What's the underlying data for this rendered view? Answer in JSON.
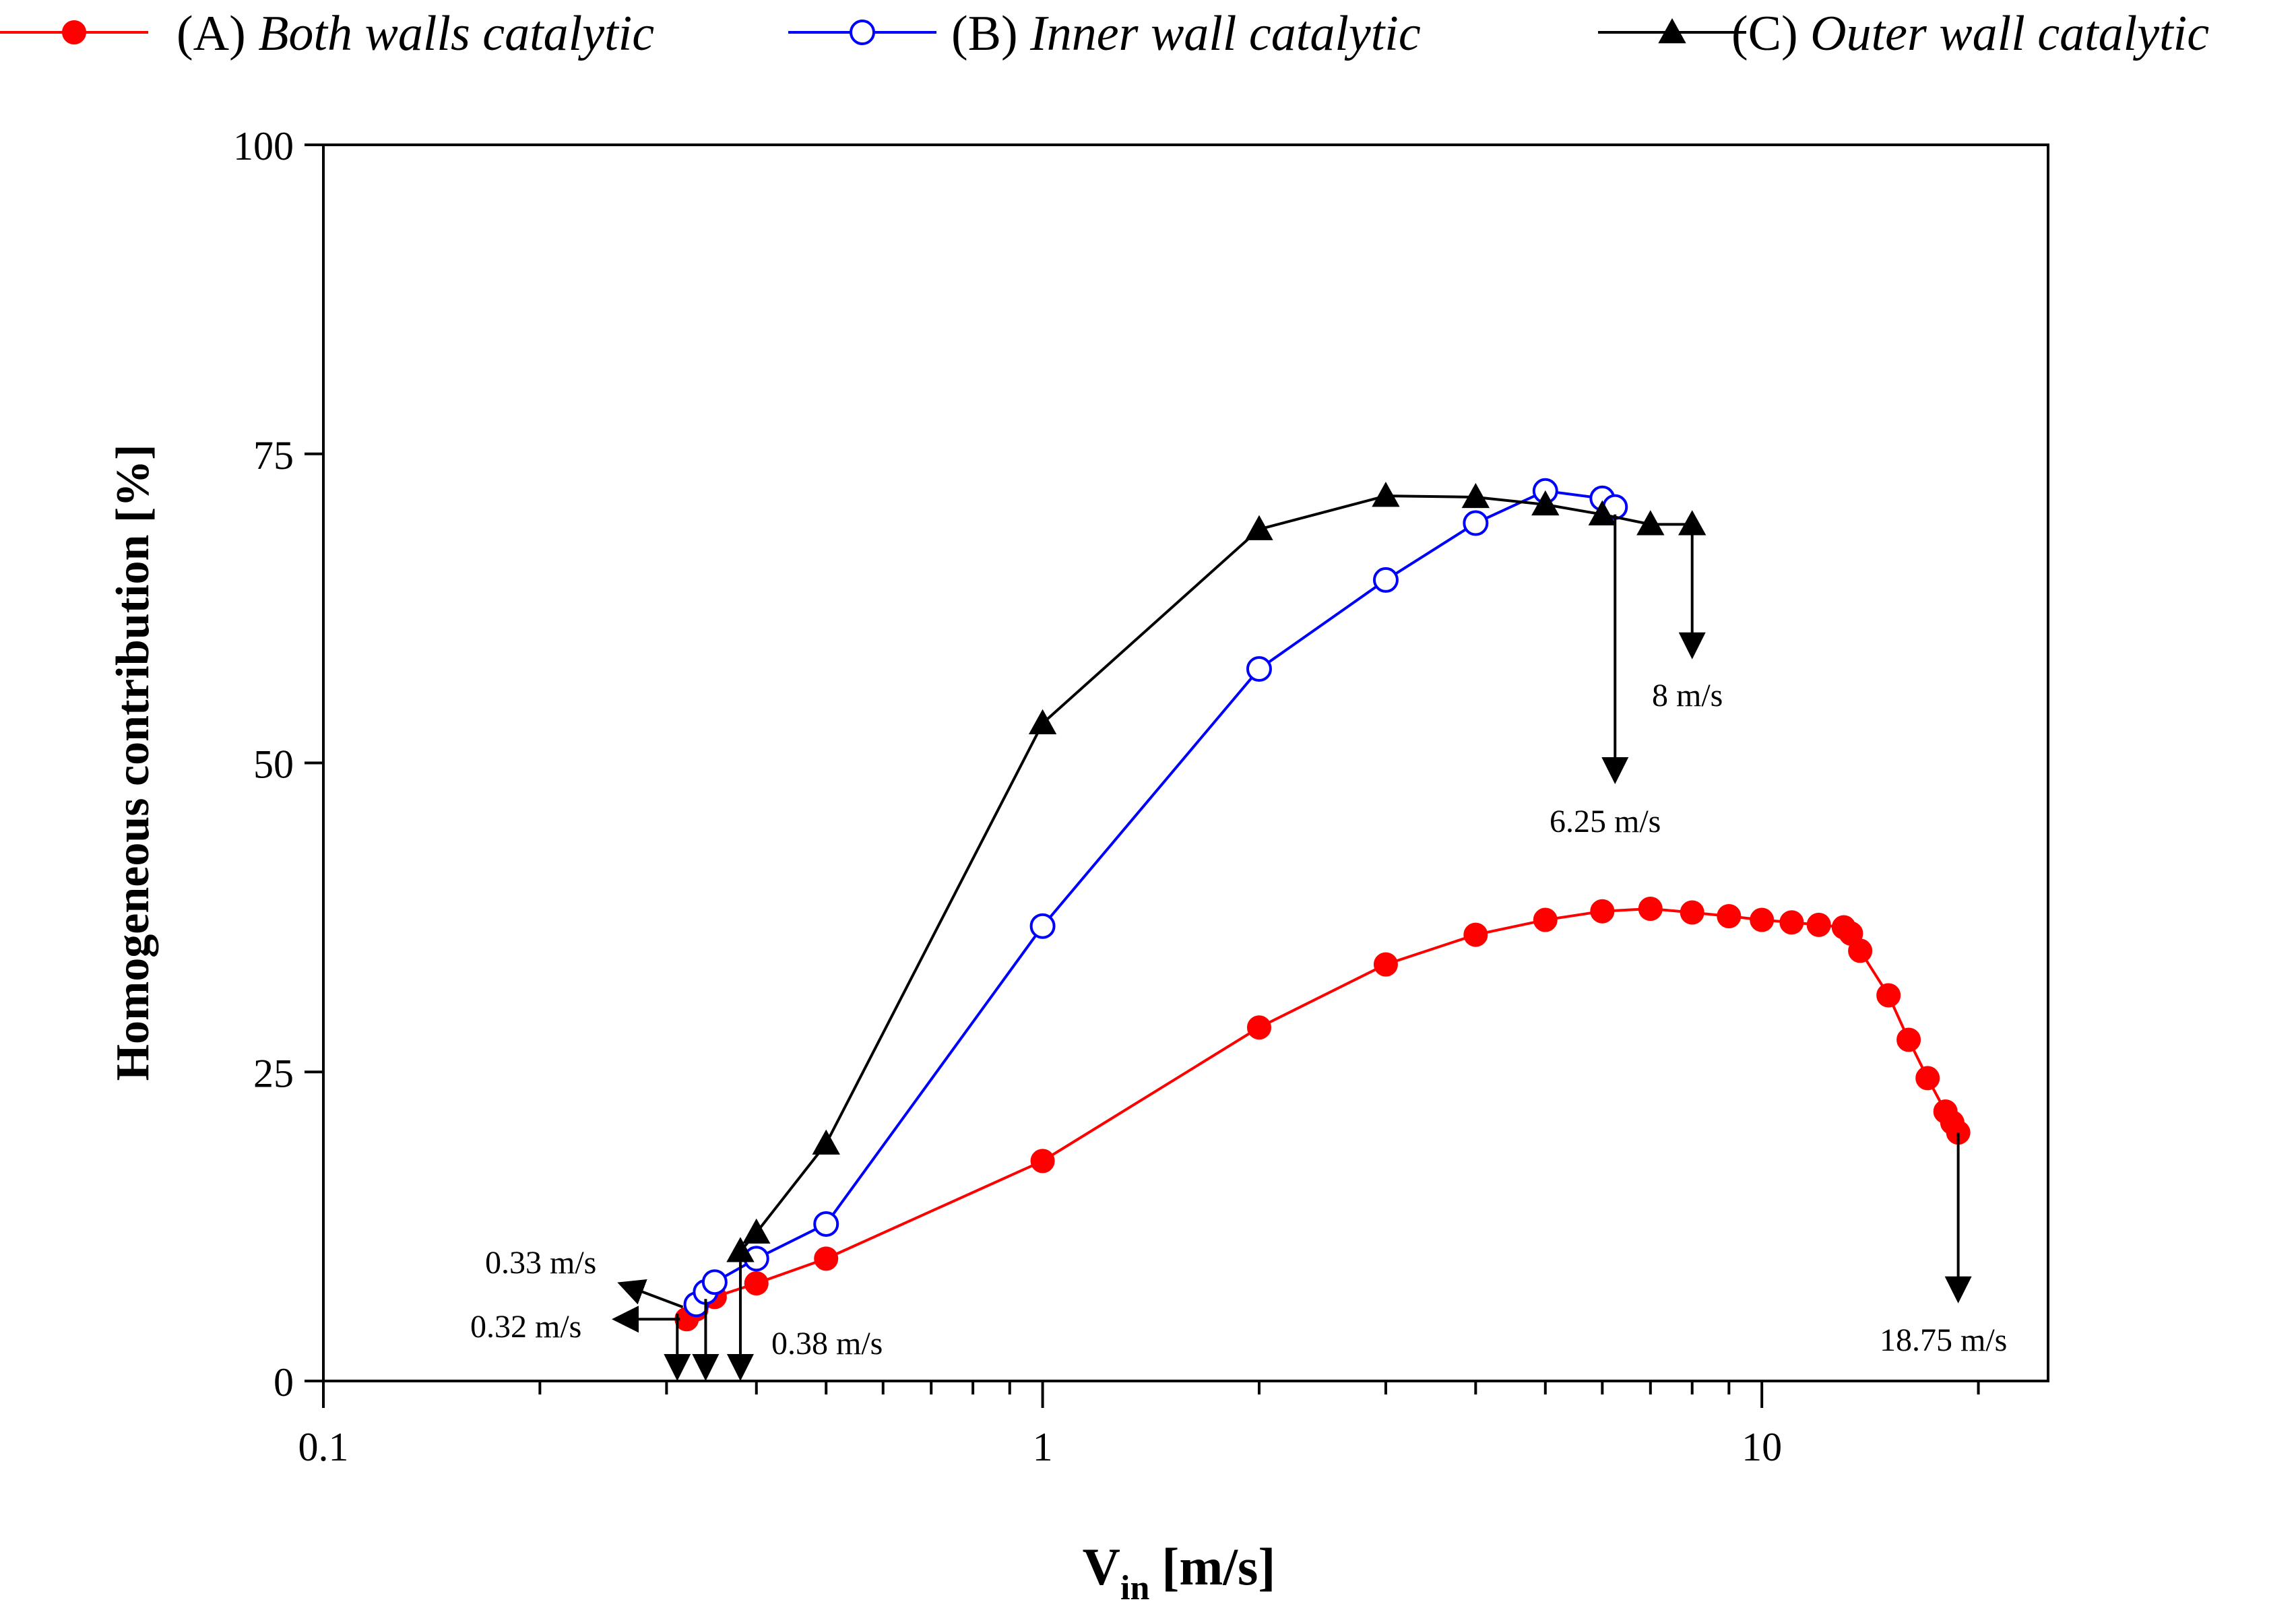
{
  "chart_data": {
    "type": "line",
    "x_scale": "log",
    "xlim": [
      0.1,
      25
    ],
    "ylim": [
      0,
      100
    ],
    "xlabel": {
      "main": "V",
      "sub": "in",
      "unit": "[m/s]"
    },
    "ylabel": "Homogeneous contribution [%]",
    "x_ticks": [
      {
        "value": 0.1,
        "label": "0.1"
      },
      {
        "value": 1,
        "label": "1"
      },
      {
        "value": 10,
        "label": "10"
      }
    ],
    "y_ticks": [
      {
        "value": 0,
        "label": "0"
      },
      {
        "value": 25,
        "label": "25"
      },
      {
        "value": 50,
        "label": "50"
      },
      {
        "value": 75,
        "label": "75"
      },
      {
        "value": 100,
        "label": "100"
      }
    ],
    "series": [
      {
        "name": "A",
        "prefix": "(A) ",
        "label": "Both walls catalytic",
        "color": "#ff0000",
        "marker": "filled-circle",
        "x": [
          0.32,
          0.33,
          0.35,
          0.4,
          0.5,
          1,
          2,
          3,
          4,
          5,
          6,
          7,
          8,
          9,
          10,
          11,
          12,
          13,
          13.3,
          13.7,
          15,
          16,
          17,
          18,
          18.4,
          18.75
        ],
        "y": [
          5,
          5.8,
          6.8,
          7.9,
          9.9,
          17.8,
          28.6,
          33.7,
          36.1,
          37.3,
          38.0,
          38.2,
          37.9,
          37.6,
          37.3,
          37.1,
          36.9,
          36.7,
          36.2,
          34.8,
          31.2,
          27.6,
          24.5,
          21.8,
          20.9,
          20.1
        ]
      },
      {
        "name": "B",
        "prefix": "(B) ",
        "label": "Inner wall catalytic",
        "color": "#0000ff",
        "marker": "open-circle",
        "x": [
          0.33,
          0.34,
          0.35,
          0.4,
          0.5,
          1,
          2,
          3,
          4,
          5,
          6,
          6.25
        ],
        "y": [
          6.2,
          7.2,
          8.0,
          9.9,
          12.7,
          36.8,
          57.6,
          64.8,
          69.4,
          72.0,
          71.4,
          70.7
        ]
      },
      {
        "name": "C",
        "prefix": "(C) ",
        "label": "Outer wall catalytic",
        "color": "#000000",
        "marker": "filled-triangle",
        "x": [
          0.38,
          0.4,
          0.5,
          1,
          2,
          3,
          4,
          5,
          6,
          7,
          8
        ],
        "y": [
          10.5,
          12.0,
          19.2,
          53.2,
          68.9,
          71.6,
          71.5,
          70.9,
          70.1,
          69.3,
          69.3
        ]
      }
    ],
    "annotations": [
      {
        "text": "0.33  m/s",
        "arrow": "to-left",
        "at_x": 0.33,
        "at_y": 6.2
      },
      {
        "text": "0.32  m/s",
        "arrow": "to-left",
        "at_x": 0.32,
        "at_y": 5.0
      },
      {
        "text": "0.38  m/s",
        "arrow": "down",
        "at_x": 0.38
      },
      {
        "text": "8  m/s",
        "arrow": "down",
        "at_x": 8
      },
      {
        "text": "6.25  m/s",
        "arrow": "down",
        "at_x": 6.25
      },
      {
        "text": "18.75  m/s",
        "arrow": "down",
        "at_x": 18.75
      }
    ]
  }
}
